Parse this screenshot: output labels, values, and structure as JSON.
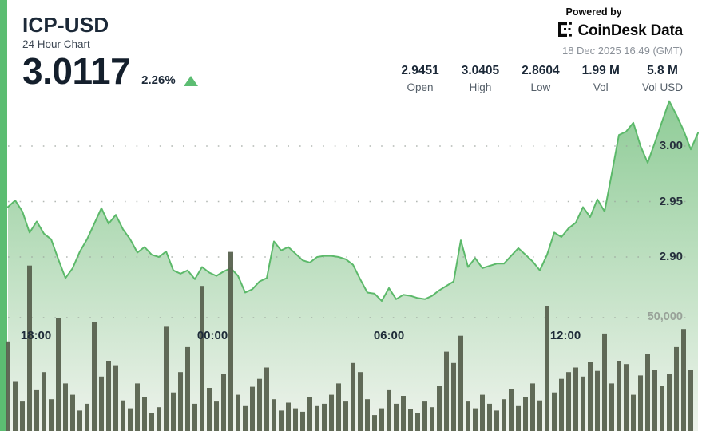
{
  "accent_color": "#5cbd72",
  "header": {
    "symbol": "ICP-USD",
    "subtitle": "24 Hour Chart",
    "price": "3.0117",
    "change_percent": "2.26%",
    "change_direction": "up",
    "powered_by": "Powered by",
    "brand": "CoinDesk Data",
    "timestamp": "18 Dec 2025 16:49 (GMT)",
    "stats": [
      {
        "value": "2.9451",
        "label": "Open"
      },
      {
        "value": "3.0405",
        "label": "High"
      },
      {
        "value": "2.8604",
        "label": "Low"
      },
      {
        "value": "1.99 M",
        "label": "Vol"
      },
      {
        "value": "5.8 M",
        "label": "Vol USD"
      }
    ]
  },
  "chart_data": {
    "type": "area",
    "title": "ICP-USD 24 Hour Chart",
    "interval_minutes": 15,
    "x_axis_labels": [
      "18:00",
      "00:00",
      "06:00",
      "12:00"
    ],
    "y_axis_labels": [
      "3.00",
      "2.95",
      "2.90"
    ],
    "y_axis_values": [
      3.0,
      2.95,
      2.9
    ],
    "volume_axis_label": "50,000",
    "volume_axis_value": 50000,
    "open": 2.9451,
    "high": 3.0405,
    "low": 2.8604,
    "close": 3.0117,
    "volume_total": "1.99 M",
    "volume_usd_total": "5.8 M",
    "grid": "dotted",
    "line_color": "#5cb96a",
    "fill_top_color": "#8fcc97",
    "fill_bottom_color": "#eef3ec",
    "bar_color": "#59624f",
    "series": [
      {
        "name": "price",
        "type": "area",
        "values": [
          2.9451,
          2.951,
          2.941,
          2.922,
          2.932,
          2.921,
          2.916,
          2.898,
          2.881,
          2.89,
          2.905,
          2.916,
          2.93,
          2.944,
          2.93,
          2.938,
          2.925,
          2.916,
          2.904,
          2.909,
          2.902,
          2.9,
          2.905,
          2.888,
          2.885,
          2.888,
          2.88,
          2.891,
          2.886,
          2.883,
          2.887,
          2.89,
          2.883,
          2.868,
          2.871,
          2.878,
          2.881,
          2.914,
          2.906,
          2.909,
          2.903,
          2.897,
          2.895,
          2.9,
          2.901,
          2.901,
          2.9,
          2.898,
          2.893,
          2.88,
          2.868,
          2.867,
          2.8604,
          2.872,
          2.862,
          2.866,
          2.865,
          2.863,
          2.862,
          2.865,
          2.87,
          2.874,
          2.878,
          2.915,
          2.891,
          2.899,
          2.89,
          2.892,
          2.894,
          2.894,
          2.901,
          2.908,
          2.902,
          2.896,
          2.888,
          2.902,
          2.922,
          2.918,
          2.926,
          2.931,
          2.945,
          2.936,
          2.952,
          2.941,
          2.975,
          3.01,
          3.013,
          3.021,
          3.0,
          2.985,
          3.003,
          3.022,
          3.0405,
          3.028,
          3.014,
          2.997,
          3.0117
        ]
      },
      {
        "name": "volume",
        "type": "bar",
        "values": [
          39500,
          22000,
          13000,
          73000,
          18000,
          26000,
          14000,
          50000,
          21000,
          16000,
          9000,
          12000,
          48000,
          24000,
          31000,
          29000,
          13500,
          10000,
          21000,
          15000,
          8000,
          10500,
          46000,
          17000,
          26000,
          37000,
          12000,
          64000,
          19000,
          13000,
          25000,
          79000,
          16000,
          11000,
          19500,
          23000,
          28000,
          14000,
          9000,
          12500,
          10000,
          8500,
          15000,
          11000,
          12000,
          16000,
          21000,
          13000,
          30000,
          26000,
          14000,
          7000,
          10000,
          18000,
          12000,
          15500,
          9500,
          8000,
          13000,
          10500,
          20000,
          35000,
          30000,
          42000,
          13000,
          10000,
          16000,
          12000,
          9000,
          14000,
          18500,
          11000,
          15000,
          21000,
          13500,
          55000,
          17000,
          23000,
          26000,
          28000,
          24000,
          30500,
          26500,
          43000,
          21000,
          31000,
          29500,
          16000,
          24500,
          34000,
          27000,
          20000,
          25000,
          37000,
          45000,
          27000
        ]
      }
    ]
  }
}
